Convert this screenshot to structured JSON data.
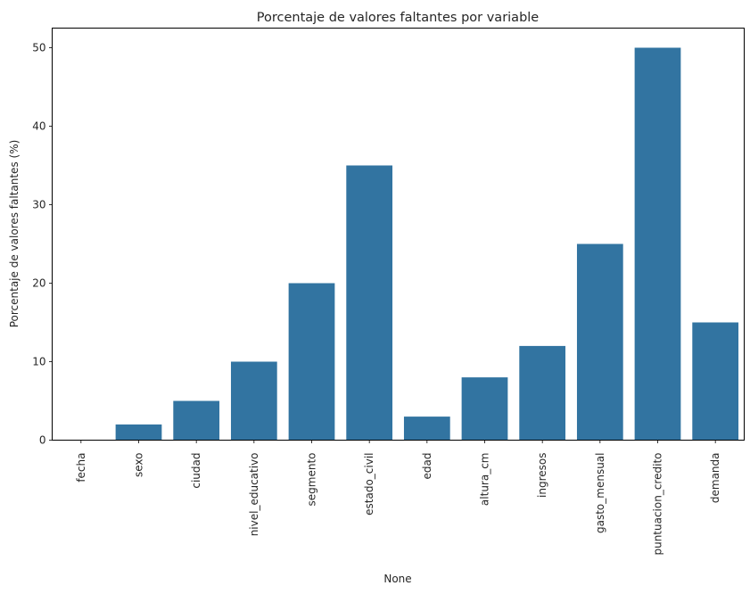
{
  "chart_data": {
    "type": "bar",
    "title": "Porcentaje de valores faltantes por variable",
    "xlabel": "None",
    "ylabel": "Porcentaje de valores faltantes (%)",
    "categories": [
      "fecha",
      "sexo",
      "ciudad",
      "nivel_educativo",
      "segmento",
      "estado_civil",
      "edad",
      "altura_cm",
      "ingresos",
      "gasto_mensual",
      "puntuacion_credito",
      "demanda"
    ],
    "values": [
      0,
      2,
      5,
      10,
      20,
      35,
      3,
      8,
      12,
      25,
      50,
      15
    ],
    "yticks": [
      0,
      10,
      20,
      30,
      40,
      50
    ],
    "ylim": [
      0,
      52.5
    ],
    "grid": false,
    "bar_color": "#3274a1"
  }
}
